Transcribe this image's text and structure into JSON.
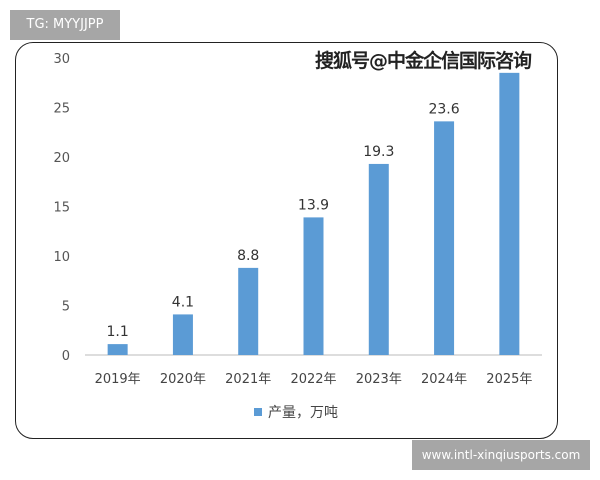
{
  "tag": "TG: MYYJJPP",
  "watermark": "搜狐号@中金企信国际咨询",
  "site": "www.intl-xinqiusports.com",
  "chart_data": {
    "type": "bar",
    "categories": [
      "2019年",
      "2020年",
      "2021年",
      "2022年",
      "2023年",
      "2024年",
      "2025年"
    ],
    "series": [
      {
        "name": "产量，万吨",
        "values": [
          1.1,
          4.1,
          8.8,
          13.9,
          19.3,
          23.6,
          28.5
        ],
        "labels": [
          "1.1",
          "4.1",
          "8.8",
          "13.9",
          "19.3",
          "23.6",
          ""
        ]
      }
    ],
    "ylim": [
      0,
      30
    ],
    "yticks": [
      "0",
      "5",
      "10",
      "15",
      "20",
      "25",
      "30"
    ],
    "grid": false,
    "legend": "bottom",
    "color": "#5b9bd5"
  }
}
